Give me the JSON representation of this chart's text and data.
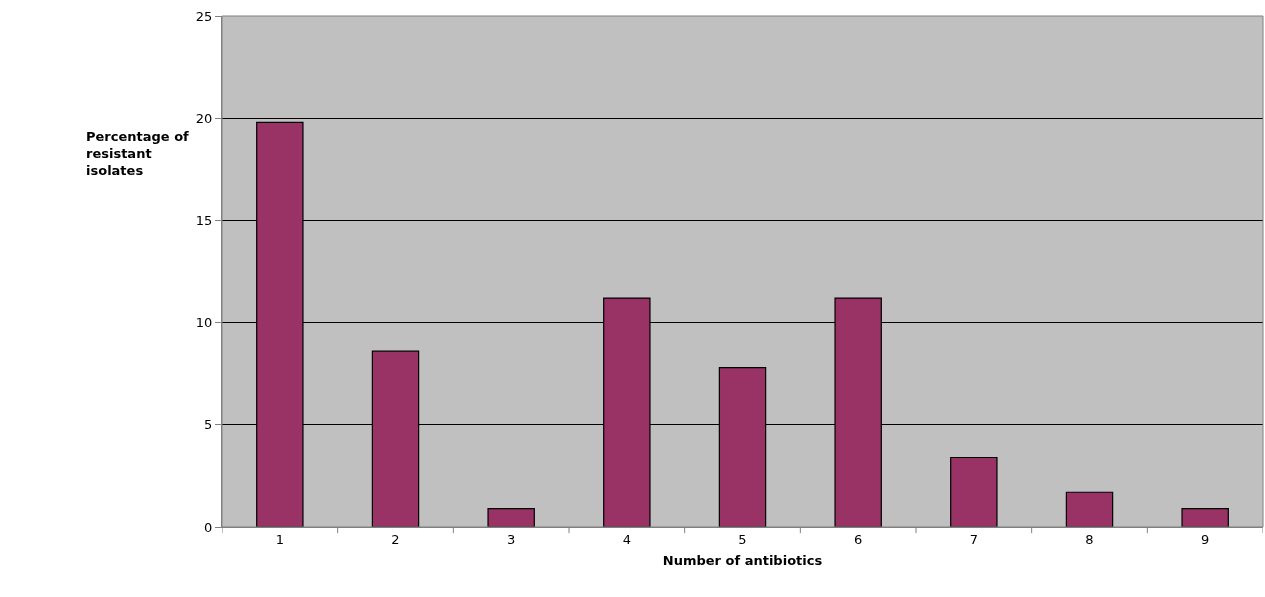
{
  "chart_data": {
    "type": "bar",
    "xlabel": "Number of antibiotics",
    "ylabel": "Percentage of resistant isolates",
    "categories": [
      "1",
      "2",
      "3",
      "4",
      "5",
      "6",
      "7",
      "8",
      "9"
    ],
    "values": [
      19.8,
      8.6,
      0.9,
      11.2,
      7.8,
      11.2,
      3.4,
      1.7,
      0.9
    ],
    "color": "#993366",
    "ylim": [
      0,
      25
    ],
    "yticks": [
      0,
      5,
      10,
      15,
      20,
      25
    ],
    "grid": "y",
    "legend": false
  }
}
